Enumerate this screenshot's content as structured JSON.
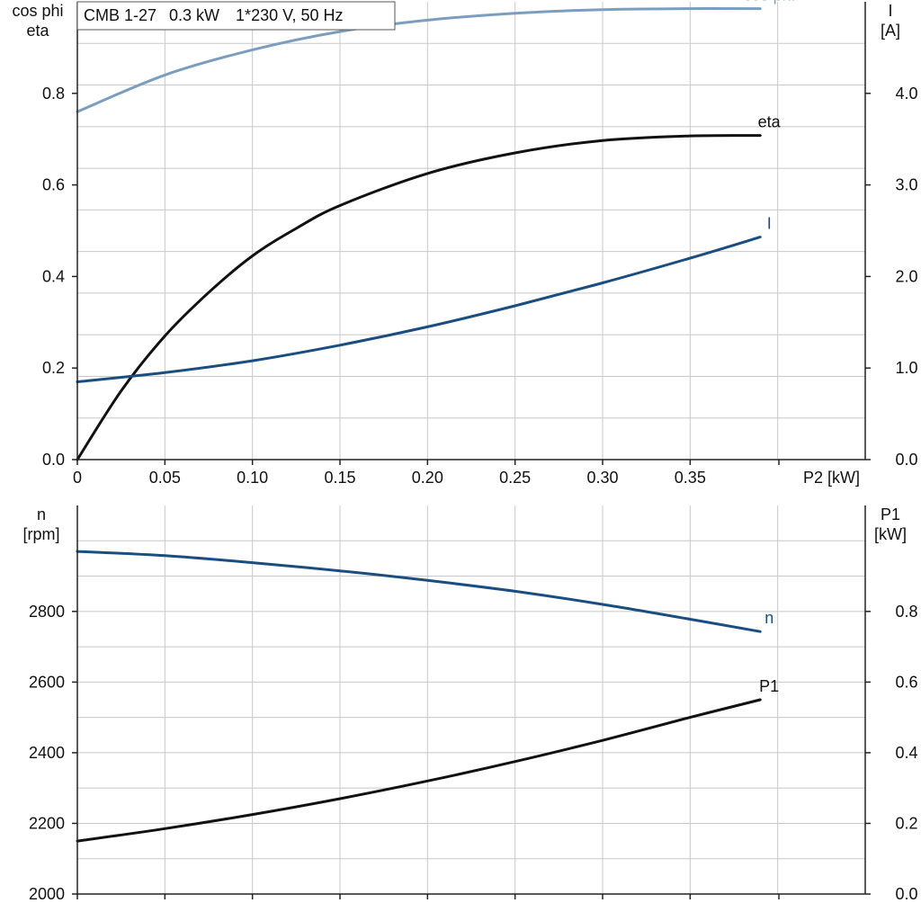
{
  "header": {
    "model": "CMB 1-27",
    "power": "0.3 kW",
    "supply": "1*230 V, 50 Hz"
  },
  "colors": {
    "cosphi": "#7b9ebf",
    "eta": "#111111",
    "current": "#1a4d80",
    "speed": "#1a4d80",
    "p1": "#111111",
    "grid": "#c8c8c8"
  },
  "chart_data": [
    {
      "type": "line",
      "x_label": "P2 [kW]",
      "x_ticks": [
        0,
        0.05,
        0.1,
        0.15,
        0.2,
        0.25,
        0.3,
        0.35
      ],
      "x_tick_labels": [
        "0",
        "0.05",
        "0.10",
        "0.15",
        "0.20",
        "0.25",
        "0.30",
        "0.35"
      ],
      "xlim": [
        0,
        0.45
      ],
      "left_axis": {
        "label_lines": [
          "cos phi",
          "eta"
        ],
        "ylim": [
          0,
          1.0
        ],
        "ticks": [
          0,
          0.2,
          0.4,
          0.6,
          0.8
        ],
        "tick_labels": [
          "0.0",
          "0.2",
          "0.4",
          "0.6",
          "0.8"
        ]
      },
      "right_axis": {
        "label_lines": [
          "I",
          "[A]"
        ],
        "ylim": [
          0,
          5.0
        ],
        "ticks": [
          0,
          1.0,
          2.0,
          3.0,
          4.0
        ],
        "tick_labels": [
          "0.0",
          "1.0",
          "2.0",
          "3.0",
          "4.0"
        ]
      },
      "grid": true,
      "series": [
        {
          "name": "cos phi",
          "axis": "left",
          "x": [
            0,
            0.05,
            0.1,
            0.15,
            0.2,
            0.25,
            0.3,
            0.35,
            0.39
          ],
          "y": [
            0.76,
            0.84,
            0.895,
            0.935,
            0.96,
            0.975,
            0.983,
            0.985,
            0.985
          ]
        },
        {
          "name": "eta",
          "axis": "left",
          "x": [
            0,
            0.025,
            0.05,
            0.075,
            0.1,
            0.125,
            0.15,
            0.2,
            0.25,
            0.3,
            0.35,
            0.39
          ],
          "y": [
            0,
            0.15,
            0.27,
            0.365,
            0.445,
            0.505,
            0.555,
            0.625,
            0.67,
            0.697,
            0.707,
            0.708
          ]
        },
        {
          "name": "I",
          "axis": "right",
          "x": [
            0,
            0.05,
            0.1,
            0.15,
            0.2,
            0.25,
            0.3,
            0.35,
            0.39
          ],
          "y": [
            0.85,
            0.95,
            1.08,
            1.25,
            1.45,
            1.68,
            1.93,
            2.2,
            2.43
          ]
        }
      ]
    },
    {
      "type": "line",
      "x_ticks": [
        0,
        0.05,
        0.1,
        0.15,
        0.2,
        0.25,
        0.3,
        0.35
      ],
      "xlim": [
        0,
        0.45
      ],
      "left_axis": {
        "label_lines": [
          "n",
          "[rpm]"
        ],
        "ylim": [
          2000,
          3100
        ],
        "ticks": [
          2000,
          2200,
          2400,
          2600,
          2800
        ],
        "tick_labels": [
          "2000",
          "2200",
          "2400",
          "2600",
          "2800"
        ]
      },
      "right_axis": {
        "label_lines": [
          "P1",
          "[kW]"
        ],
        "ylim": [
          0,
          1.1
        ],
        "ticks": [
          0,
          0.2,
          0.4,
          0.6,
          0.8
        ],
        "tick_labels": [
          "0.0",
          "0.2",
          "0.4",
          "0.6",
          "0.8"
        ]
      },
      "grid": true,
      "series": [
        {
          "name": "n",
          "axis": "left",
          "x": [
            0,
            0.05,
            0.1,
            0.15,
            0.2,
            0.25,
            0.3,
            0.35,
            0.39
          ],
          "y": [
            2970,
            2958,
            2938,
            2915,
            2888,
            2857,
            2820,
            2778,
            2743
          ]
        },
        {
          "name": "P1",
          "axis": "right",
          "x": [
            0,
            0.05,
            0.1,
            0.15,
            0.2,
            0.25,
            0.3,
            0.35,
            0.39
          ],
          "y": [
            0.15,
            0.185,
            0.225,
            0.27,
            0.32,
            0.375,
            0.435,
            0.5,
            0.55
          ]
        }
      ]
    }
  ]
}
